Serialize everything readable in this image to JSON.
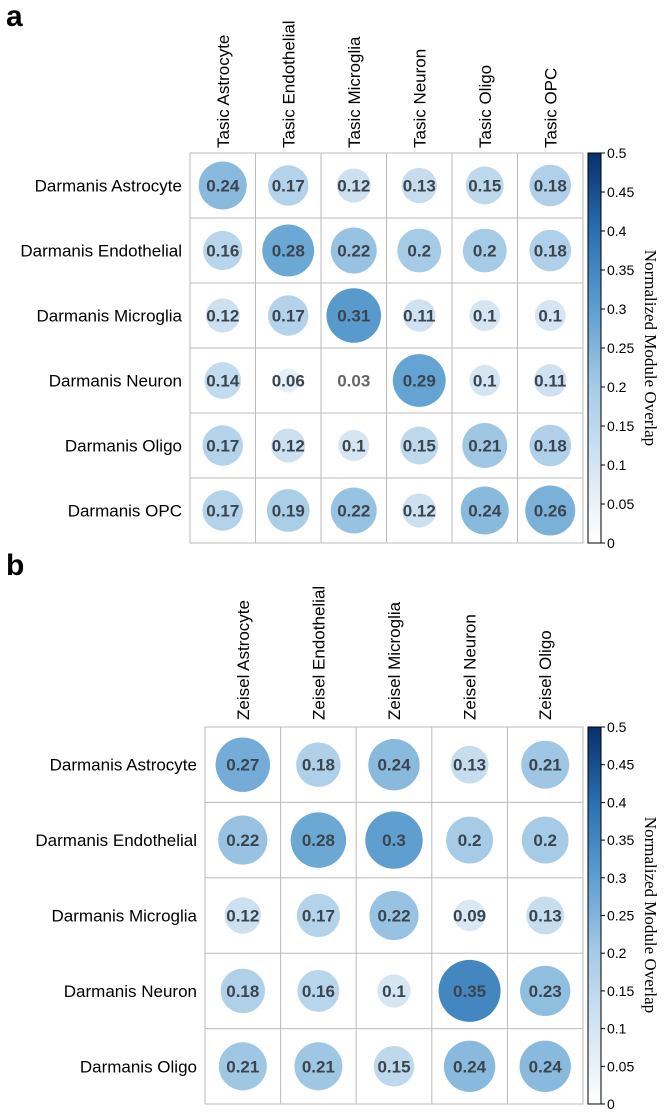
{
  "chart_data": [
    {
      "panel": "a",
      "type": "heatmap",
      "columns": [
        "Tasic Astrocyte",
        "Tasic Endothelial",
        "Tasic Microglia",
        "Tasic Neuron",
        "Tasic Oligo",
        "Tasic OPC"
      ],
      "rows": [
        "Darmanis Astrocyte",
        "Darmanis Endothelial",
        "Darmanis Microglia",
        "Darmanis Neuron",
        "Darmanis Oligo",
        "Darmanis OPC"
      ],
      "values": [
        [
          0.24,
          0.17,
          0.12,
          0.13,
          0.15,
          0.18
        ],
        [
          0.16,
          0.28,
          0.22,
          0.2,
          0.2,
          0.18
        ],
        [
          0.12,
          0.17,
          0.31,
          0.11,
          0.1,
          0.1
        ],
        [
          0.14,
          0.06,
          0.03,
          0.29,
          0.1,
          0.11
        ],
        [
          0.17,
          0.12,
          0.1,
          0.15,
          0.21,
          0.18
        ],
        [
          0.17,
          0.19,
          0.22,
          0.12,
          0.24,
          0.26
        ]
      ],
      "colorbar": {
        "title": "Normalized Module Overlap",
        "range": [
          0,
          0.5
        ],
        "ticks": [
          "0",
          "0.05",
          "0.1",
          "0.15",
          "0.2",
          "0.25",
          "0.3",
          "0.35",
          "0.4",
          "0.45",
          "0.5"
        ]
      }
    },
    {
      "panel": "b",
      "type": "heatmap",
      "columns": [
        "Zeisel Astrocyte",
        "Zeisel Endothelial",
        "Zeisel Microglia",
        "Zeisel Neuron",
        "Zeisel Oligo"
      ],
      "rows": [
        "Darmanis Astrocyte",
        "Darmanis Endothelial",
        "Darmanis Microglia",
        "Darmanis Neuron",
        "Darmanis Oligo"
      ],
      "values": [
        [
          0.27,
          0.18,
          0.24,
          0.13,
          0.21
        ],
        [
          0.22,
          0.28,
          0.3,
          0.2,
          0.2
        ],
        [
          0.12,
          0.17,
          0.22,
          0.09,
          0.13
        ],
        [
          0.18,
          0.16,
          0.1,
          0.35,
          0.23
        ],
        [
          0.21,
          0.21,
          0.15,
          0.24,
          0.24
        ]
      ],
      "colorbar": {
        "title": "Normalized Module Overlap",
        "range": [
          0,
          0.5
        ],
        "ticks": [
          "0",
          "0.05",
          "0.1",
          "0.15",
          "0.2",
          "0.25",
          "0.3",
          "0.35",
          "0.4",
          "0.45",
          "0.5"
        ]
      }
    }
  ],
  "colors": {
    "low": "#ffffff",
    "mid": "#6fa8d6",
    "high": "#08306b",
    "grid": "#bbbbbb",
    "value_text": "#3a4550",
    "value_text_light": "#666666"
  }
}
